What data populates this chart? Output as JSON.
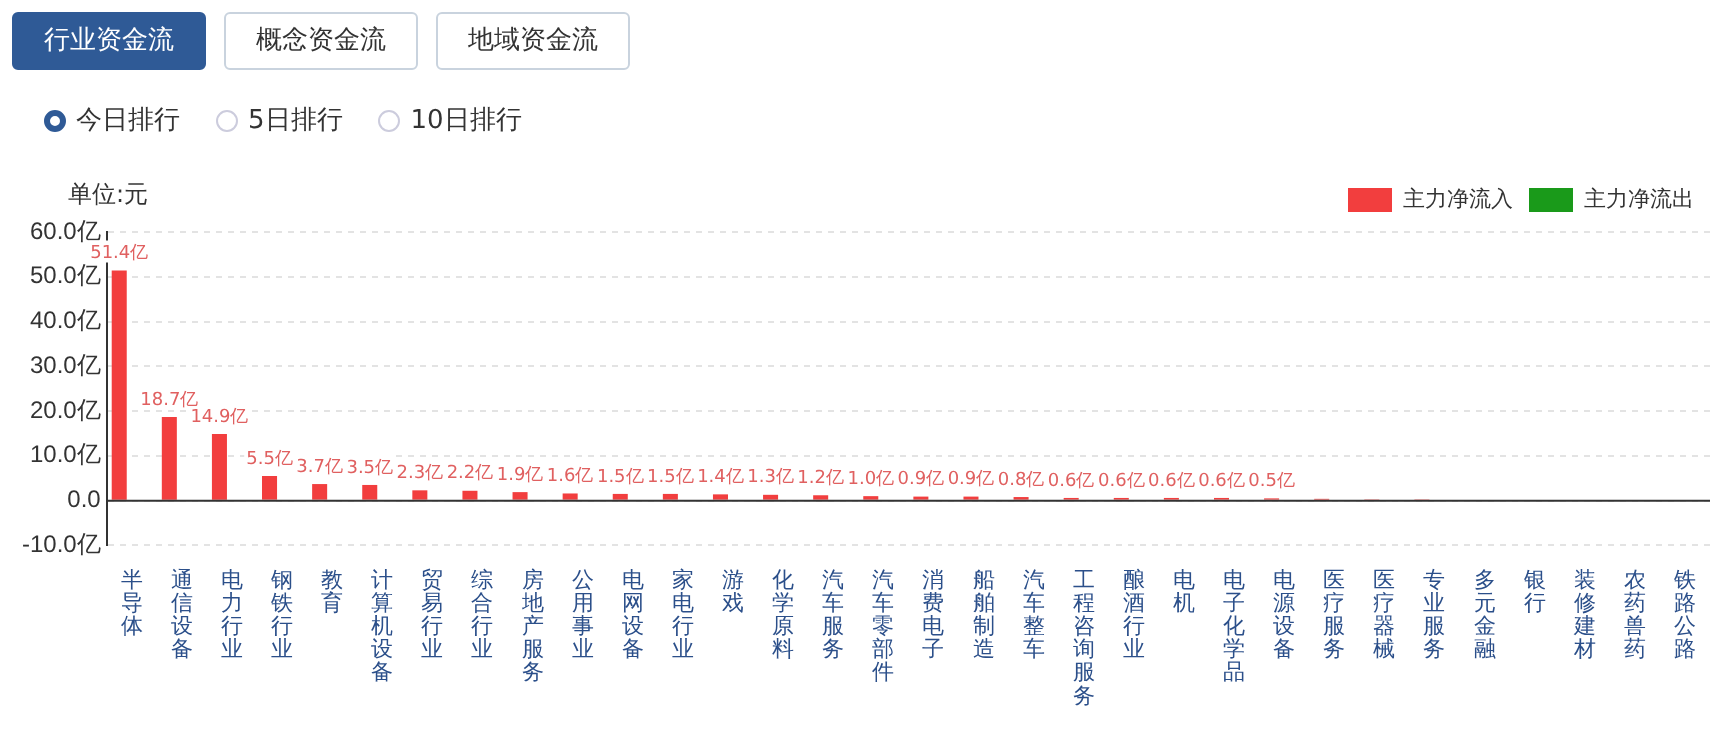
{
  "chart_data": {
    "type": "bar",
    "ylabel": "单位:元",
    "annotations": [
      "行业资金流",
      "概念资金流",
      "地域资金流",
      "今日排行",
      "5日排行",
      "10日排行"
    ],
    "categories": [
      "半导体",
      "通信设备",
      "电力行业",
      "钢铁行业",
      "教育",
      "计算机设备",
      "贸易行业",
      "综合行业",
      "房地产服务",
      "公用事业",
      "电网设备",
      "家电行业",
      "游戏",
      "化学原料",
      "汽车服务",
      "汽车零部件",
      "消费电子",
      "船舶制造",
      "汽车整车",
      "工程咨询服务",
      "酿酒行业",
      "电机",
      "电子化学品",
      "电源设备",
      "医疗服务",
      "医疗器械",
      "专业服务",
      "多元金融",
      "银行",
      "装修建材",
      "农药兽药",
      "铁路公路"
    ],
    "series": [
      {
        "name": "主力净流入",
        "color": "#f23e3e",
        "values": [
          51.4,
          18.7,
          14.9,
          5.5,
          3.7,
          3.5,
          2.3,
          2.2,
          1.9,
          1.6,
          1.5,
          1.5,
          1.4,
          1.3,
          1.2,
          1.0,
          0.9,
          0.9,
          0.8,
          0.6,
          0.6,
          0.6,
          0.6,
          0.5,
          0.4,
          0.3,
          0.3,
          null,
          null,
          null,
          null,
          null
        ],
        "value_labels": [
          "51.4亿",
          "18.7亿",
          "14.9亿",
          "5.5亿",
          "3.7亿",
          "3.5亿",
          "2.3亿",
          "2.2亿",
          "1.9亿",
          "1.6亿",
          "1.5亿",
          "1.5亿",
          "1.4亿",
          "1.3亿",
          "1.2亿",
          "1.0亿",
          "0.9亿",
          "0.9亿",
          "0.8亿",
          "0.6亿",
          "0.6亿",
          "0.6亿",
          "0.6亿",
          "0.5亿",
          null,
          null,
          null,
          null,
          null,
          null,
          null,
          null
        ]
      },
      {
        "name": "主力净流出",
        "color": "#1a9a1a",
        "values": [
          null,
          null,
          null,
          null,
          null,
          null,
          null,
          null,
          null,
          null,
          null,
          null,
          null,
          null,
          null,
          null,
          null,
          null,
          null,
          null,
          null,
          null,
          null,
          null,
          null,
          null,
          null,
          null,
          null,
          null,
          null,
          null
        ]
      }
    ],
    "ylim": [
      -10,
      60
    ],
    "yticks": [
      {
        "value": 60,
        "label": "60.0亿"
      },
      {
        "value": 50,
        "label": "50.0亿"
      },
      {
        "value": 40,
        "label": "40.0亿"
      },
      {
        "value": 30,
        "label": "30.0亿"
      },
      {
        "value": 20,
        "label": "20.0亿"
      },
      {
        "value": 10,
        "label": "10.0亿"
      },
      {
        "value": 0,
        "label": "0.0"
      },
      {
        "value": -10,
        "label": "-10.0亿"
      }
    ],
    "grid": "y",
    "legend": "top right"
  }
}
